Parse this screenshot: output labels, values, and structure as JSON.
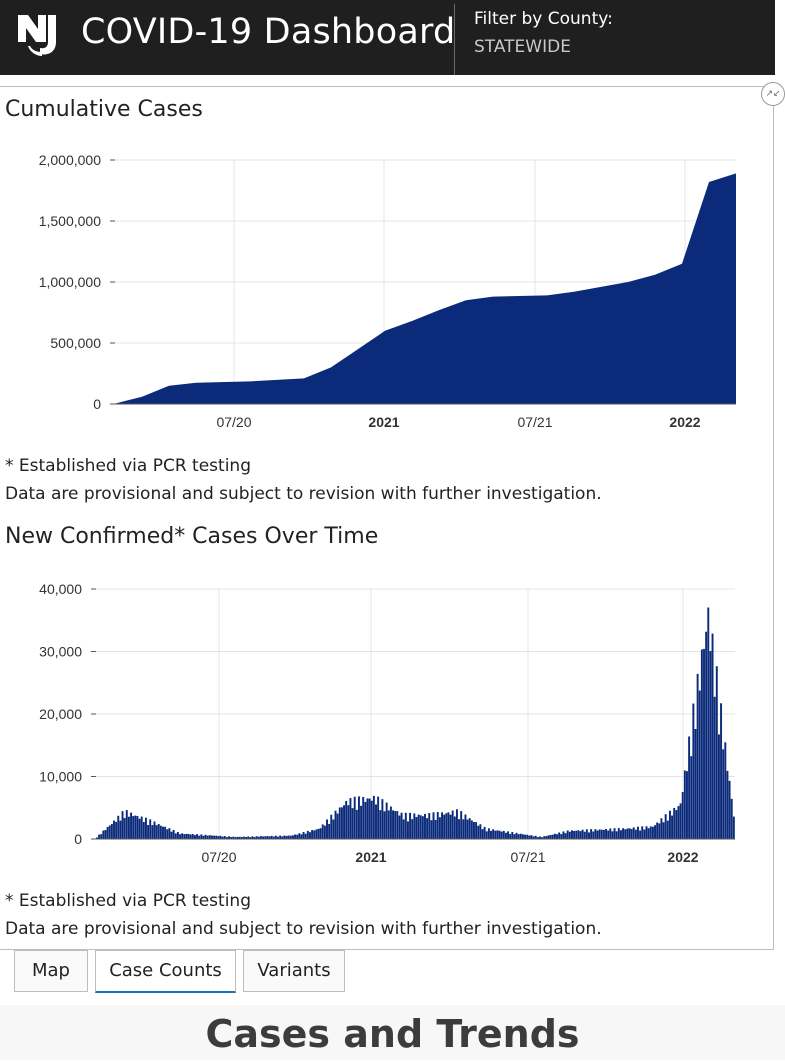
{
  "header": {
    "title": "COVID-19 Dashboard",
    "filter_label": "Filter by County:",
    "filter_value": "STATEWIDE",
    "logo_text": "NJ"
  },
  "colors": {
    "bar": "#0b2a7a",
    "header_bg": "#1f1f1f",
    "grid": "#e4e4e4",
    "axis": "#555555",
    "tab_active": "#1f6fbf"
  },
  "icons": {
    "expand": "collapse-arrows-icon"
  },
  "cumulative": {
    "title": "Cumulative Cases",
    "footnote": "* Established via PCR testing",
    "disclaimer": "Data are provisional and subject to revision with further investigation."
  },
  "new_cases": {
    "title": "New Confirmed* Cases Over Time",
    "footnote": "* Established via PCR testing",
    "disclaimer": "Data are provisional and subject to revision with further investigation."
  },
  "tabs": [
    {
      "label": "Map",
      "active": false
    },
    {
      "label": "Case Counts",
      "active": true
    },
    {
      "label": "Variants",
      "active": false
    }
  ],
  "footer": {
    "title": "Cases and Trends"
  },
  "chart_data": [
    {
      "type": "area",
      "title": "Cumulative Cases",
      "x_ticks": [
        "07/20",
        "2021",
        "07/21",
        "2022"
      ],
      "bold_ticks": [
        "2021",
        "2022"
      ],
      "y_ticks": [
        "0",
        "500,000",
        "1,000,000",
        "1,500,000",
        "2,000,000"
      ],
      "ylim": [
        0,
        2000000
      ],
      "x": [
        "2020-03",
        "2020-04",
        "2020-05",
        "2020-06",
        "2020-08",
        "2020-10",
        "2020-11",
        "2020-12",
        "2021-01",
        "2021-02",
        "2021-03",
        "2021-04",
        "2021-05",
        "2021-07",
        "2021-08",
        "2021-10",
        "2021-11",
        "2021-12",
        "2022-01",
        "2022-02"
      ],
      "values": [
        3000,
        60000,
        150000,
        175000,
        185000,
        210000,
        300000,
        450000,
        600000,
        680000,
        770000,
        850000,
        880000,
        890000,
        920000,
        1000000,
        1060000,
        1150000,
        1820000,
        1890000
      ]
    },
    {
      "type": "bar",
      "title": "New Confirmed* Cases Over Time",
      "x_ticks": [
        "07/20",
        "2021",
        "07/21",
        "2022"
      ],
      "bold_ticks": [
        "2021",
        "2022"
      ],
      "y_ticks": [
        "0",
        "10,000",
        "20,000",
        "30,000",
        "40,000"
      ],
      "ylim": [
        0,
        40000
      ],
      "x": [
        "2020-03",
        "2020-04",
        "2020-05",
        "2020-06",
        "2020-08",
        "2020-10",
        "2020-11",
        "2020-12",
        "2021-01",
        "2021-02",
        "2021-03",
        "2021-04",
        "2021-05",
        "2021-07",
        "2021-08",
        "2021-10",
        "2021-11",
        "2021-12",
        "2022-01",
        "2022-02"
      ],
      "values": [
        300,
        4000,
        2500,
        800,
        300,
        500,
        1500,
        5500,
        6000,
        3500,
        3500,
        4000,
        1500,
        300,
        1200,
        1500,
        1800,
        5000,
        33000,
        1000
      ]
    }
  ]
}
